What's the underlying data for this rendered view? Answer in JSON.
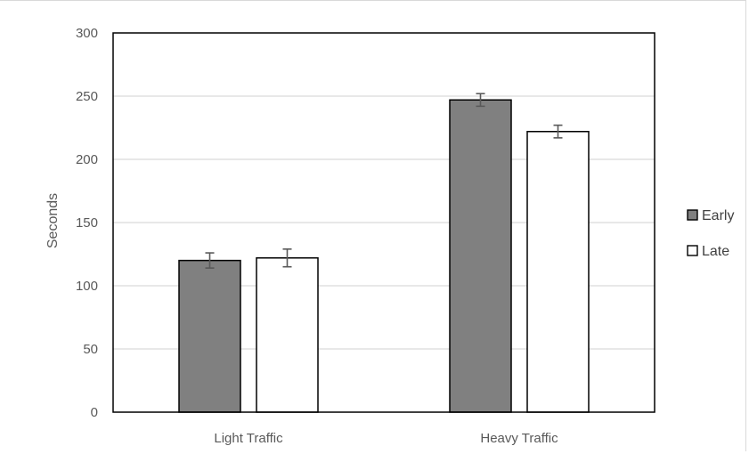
{
  "chart_data": {
    "type": "bar",
    "title": "",
    "xlabel": "",
    "ylabel": "Seconds",
    "ylim": [
      0,
      300
    ],
    "yticks": [
      0,
      50,
      100,
      150,
      200,
      250,
      300
    ],
    "grid": true,
    "legend_position": "right",
    "categories": [
      "Light Traffic",
      "Heavy Traffic"
    ],
    "series": [
      {
        "name": "Early",
        "color": "#808080",
        "values": [
          120,
          247
        ],
        "errors": [
          6,
          5
        ]
      },
      {
        "name": "Late",
        "color": "#ffffff",
        "values": [
          122,
          222
        ],
        "errors": [
          7,
          5
        ]
      }
    ]
  }
}
